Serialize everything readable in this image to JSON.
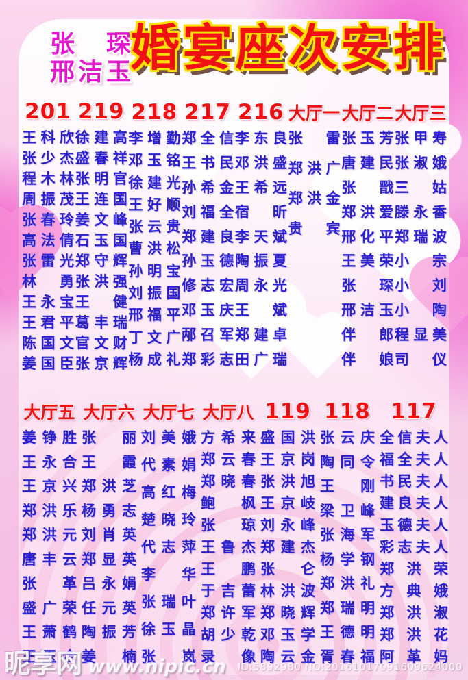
{
  "title": {
    "groom": "张琛",
    "bride": "邢洁玉",
    "main": "婚宴座次安排"
  },
  "sections": [
    {
      "columns": [
        {
          "header": "201",
          "names": [
            "王科欣",
            "张少杰",
            "程木林",
            "周振茂",
            "张春玲",
            "高法倩",
            "张雷光",
            "林勇",
            "王永宝",
            "王君平",
            "陈国文",
            "姜国臣"
          ]
        },
        {
          "header": "219",
          "names": [
            "徐建高",
            "盛春祥",
            "张明官",
            "王连国",
            "姜文峰",
            "石玉国",
            "郑守辉",
            "张洪强",
            "王健",
            "葛丰瑞",
            "官文财",
            "张京辉"
          ]
        },
        {
          "header": "218",
          "names": [
            "李增勤",
            "邓玉铭",
            "徐建光",
            "王好顺",
            "张云贵",
            "曹洪松",
            "孙明宝",
            "刘振国",
            "邢福平",
            "丁文广",
            "杨成礼"
          ]
        },
        {
          "header": "217",
          "names": [
            "郑全信",
            "王书民",
            "孙希金",
            "刘福全",
            "郑建良",
            "孙玉德",
            "修志宏",
            "邓玉庆",
            "邴召军",
            "郑彩志"
          ]
        },
        {
          "header": "216",
          "names": [
            "李东良",
            "邓洪盛",
            "王希远",
            "宿昕",
            "李天斌",
            "陶振夏",
            "周永光",
            "王斌",
            "郑建卓",
            "田广瑞"
          ]
        },
        {
          "header": "大厅一",
          "top_aligned": true,
          "names": [
            "张雷",
            "郑洪广",
            "郑洪金",
            "贵宾"
          ]
        },
        {
          "header": "大厅二",
          "names": [
            "张玉芳",
            "唐建民",
            "张戬",
            "郑洪爱",
            "邢化平",
            "王美荣",
            "张琛",
            "邢洁玉",
            "伴郎",
            "伴娘"
          ]
        },
        {
          "header": "大厅三",
          "names": [
            "张甲寿",
            "张淑娥",
            "三姑",
            "滕永香",
            "郑瑞波",
            "小宗",
            "小刘",
            "小陶",
            "程显美",
            "司仪"
          ]
        }
      ]
    },
    {
      "columns": [
        {
          "header": "大厅五",
          "names": [
            "姜铮胜",
            "王永合",
            "王京兴",
            "郑洪乐",
            "郑洪元",
            "唐丰云",
            "张革",
            "盛广荣",
            "王萧鹤",
            "王玉合"
          ]
        },
        {
          "header": "大厅六",
          "names": [
            "张丽",
            "王霞",
            "郑洪芝",
            "杨勇志",
            "刘肖英",
            "郑显英",
            "吕永娟",
            "任元英",
            "陶振芳",
            "姜楠"
          ]
        },
        {
          "header": "大厅七",
          "names": [
            "刘美娥",
            "代素娟",
            "高红梅",
            "楚晓玲",
            "代志萍",
            "李华",
            "张瑞叶",
            "徐玉晶",
            "张岚"
          ]
        },
        {
          "header": "大厅八",
          "names": [
            "方希来",
            "郑云春",
            "郑晓春",
            "鲍枫",
            "张琼",
            "王鲁杰",
            "王鹏",
            "于吉蕾",
            "郑许军",
            "胡少乾",
            "录像"
          ]
        },
        {
          "header": "119",
          "names": [
            "盛国洪",
            "王京岗",
            "张洪旭",
            "王京岐",
            "刘永峰",
            "郑建杰",
            "张仑",
            "林洪波",
            "郑晓辉",
            "邓玉学",
            "陶云金"
          ]
        },
        {
          "header": "118",
          "names": [
            "张云庆",
            "陶同令",
            "王刚",
            "梁卫峰",
            "张海军",
            "杨学钢",
            "郑洪礼",
            "郑瑞明",
            "王德明",
            "胥春福"
          ]
        },
        {
          "header": "117",
          "wide": true,
          "names": [
            "全信夫人",
            "福全夫人",
            "书民夫人",
            "建良夫人",
            "玉德夫人",
            "彩志夫人",
            "郑洪荣",
            "方典娥",
            "郑洪淑",
            "郑洪花",
            "阿革妈"
          ]
        }
      ]
    }
  ],
  "watermark": {
    "site_name": "昵享网",
    "site_url": "www.nipic.cn",
    "id_text": "ID:5892980 NO:20161017091609624000"
  },
  "colors": {
    "header_red": "#ee1111",
    "name_blue": "#2a22cc",
    "title_red": "#f01212",
    "title_outline": "#ffe000",
    "couple_magenta": "#e318ce"
  }
}
